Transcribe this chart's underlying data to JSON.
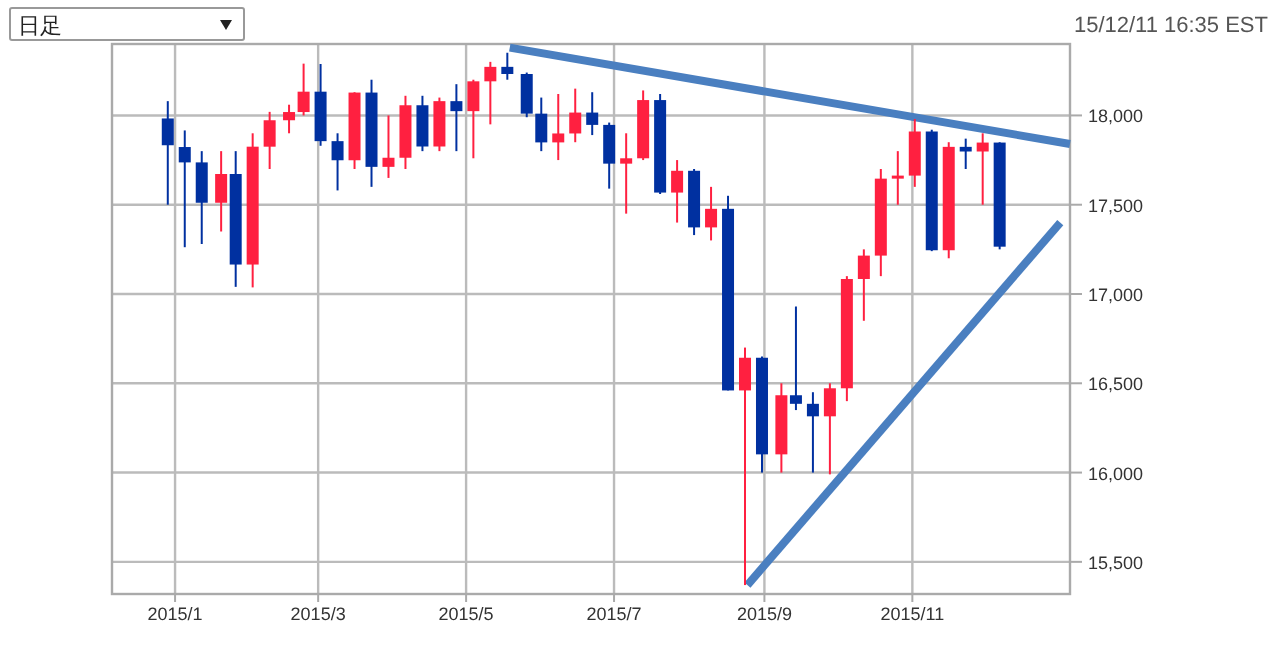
{
  "chart_data": {
    "type": "candlestick",
    "annotations": [
      "日足",
      "15/12/11 16:35 EST"
    ],
    "xlim": [
      "2014-12-06",
      "2016-01-05"
    ],
    "xticks": [
      {
        "value": "2015-01-01",
        "label": "2015/1"
      },
      {
        "value": "2015-03-01",
        "label": "2015/3"
      },
      {
        "value": "2015-05-01",
        "label": "2015/5"
      },
      {
        "value": "2015-07-01",
        "label": "2015/7"
      },
      {
        "value": "2015-09-01",
        "label": "2015/9"
      },
      {
        "value": "2015-11-01",
        "label": "2015/11"
      }
    ],
    "ylim": [
      15320,
      18400
    ],
    "yticks": [
      {
        "value": 15500,
        "label": "15,500"
      },
      {
        "value": 16000,
        "label": "16,000"
      },
      {
        "value": 16500,
        "label": "16,500"
      },
      {
        "value": 17000,
        "label": "17,000"
      },
      {
        "value": 17500,
        "label": "17,500"
      },
      {
        "value": 18000,
        "label": "18,000"
      }
    ],
    "grid": true,
    "x": [
      "2014-12-29",
      "2015-01-05",
      "2015-01-12",
      "2015-01-20",
      "2015-01-26",
      "2015-02-02",
      "2015-02-09",
      "2015-02-17",
      "2015-02-23",
      "2015-03-02",
      "2015-03-09",
      "2015-03-16",
      "2015-03-23",
      "2015-03-30",
      "2015-04-06",
      "2015-04-13",
      "2015-04-20",
      "2015-04-27",
      "2015-05-04",
      "2015-05-11",
      "2015-05-18",
      "2015-05-26",
      "2015-06-01",
      "2015-06-08",
      "2015-06-15",
      "2015-06-22",
      "2015-06-29",
      "2015-07-06",
      "2015-07-13",
      "2015-07-20",
      "2015-07-27",
      "2015-08-03",
      "2015-08-10",
      "2015-08-17",
      "2015-08-24",
      "2015-08-31",
      "2015-09-08",
      "2015-09-14",
      "2015-09-21",
      "2015-09-28",
      "2015-10-05",
      "2015-10-12",
      "2015-10-19",
      "2015-10-26",
      "2015-11-02",
      "2015-11-09",
      "2015-11-16",
      "2015-11-23",
      "2015-11-30",
      "2015-12-07"
    ],
    "ohlc": [
      [
        17983,
        18080,
        17500,
        17833
      ],
      [
        17823,
        17916,
        17262,
        17737
      ],
      [
        17737,
        17800,
        17280,
        17511
      ],
      [
        17511,
        17800,
        17350,
        17672
      ],
      [
        17672,
        17800,
        17040,
        17165
      ],
      [
        17165,
        17900,
        17037,
        17825
      ],
      [
        17825,
        18020,
        17700,
        17973
      ],
      [
        17973,
        18060,
        17900,
        18019
      ],
      [
        18019,
        18290,
        18000,
        18133
      ],
      [
        18133,
        18288,
        17830,
        17856
      ],
      [
        17856,
        17900,
        17580,
        17749
      ],
      [
        17749,
        18130,
        17700,
        18128
      ],
      [
        18128,
        18200,
        17600,
        17712
      ],
      [
        17712,
        18000,
        17650,
        17763
      ],
      [
        17763,
        18110,
        17700,
        18057
      ],
      [
        18057,
        18110,
        17800,
        17826
      ],
      [
        17826,
        18100,
        17800,
        18080
      ],
      [
        18080,
        18175,
        17800,
        18024
      ],
      [
        18024,
        18200,
        17760,
        18191
      ],
      [
        18191,
        18300,
        17950,
        18272
      ],
      [
        18272,
        18351,
        18200,
        18232
      ],
      [
        18232,
        18240,
        17990,
        18010
      ],
      [
        18010,
        18100,
        17800,
        17849
      ],
      [
        17849,
        18120,
        17750,
        17899
      ],
      [
        17899,
        18150,
        17850,
        18016
      ],
      [
        18016,
        18130,
        17890,
        17947
      ],
      [
        17947,
        17960,
        17590,
        17730
      ],
      [
        17730,
        17900,
        17450,
        17760
      ],
      [
        17760,
        18140,
        17750,
        18086
      ],
      [
        18086,
        18120,
        17560,
        17568
      ],
      [
        17568,
        17750,
        17400,
        17690
      ],
      [
        17690,
        17700,
        17330,
        17373
      ],
      [
        17373,
        17600,
        17300,
        17477
      ],
      [
        17477,
        17550,
        16460,
        16460
      ],
      [
        16460,
        16700,
        15370,
        16643
      ],
      [
        16643,
        16650,
        16000,
        16102
      ],
      [
        16102,
        16500,
        16000,
        16433
      ],
      [
        16433,
        16930,
        16350,
        16385
      ],
      [
        16385,
        16450,
        16000,
        16315
      ],
      [
        16315,
        16500,
        15990,
        16472
      ],
      [
        16472,
        17100,
        16400,
        17084
      ],
      [
        17084,
        17250,
        16850,
        17215
      ],
      [
        17215,
        17700,
        17100,
        17646
      ],
      [
        17646,
        17800,
        17500,
        17663
      ],
      [
        17663,
        17980,
        17600,
        17910
      ],
      [
        17910,
        17920,
        17240,
        17245
      ],
      [
        17245,
        17850,
        17200,
        17824
      ],
      [
        17824,
        17870,
        17700,
        17798
      ],
      [
        17798,
        17900,
        17500,
        17848
      ],
      [
        17848,
        17850,
        17250,
        17265
      ]
    ],
    "colors": [
      "#0030a0",
      "#0030a0",
      "#0030a0",
      "#ff2040",
      "#0030a0",
      "#ff2040",
      "#ff2040",
      "#ff2040",
      "#ff2040",
      "#0030a0",
      "#0030a0",
      "#ff2040",
      "#0030a0",
      "#ff2040",
      "#ff2040",
      "#0030a0",
      "#ff2040",
      "#0030a0",
      "#ff2040",
      "#ff2040",
      "#0030a0",
      "#0030a0",
      "#0030a0",
      "#ff2040",
      "#ff2040",
      "#0030a0",
      "#0030a0",
      "#ff2040",
      "#ff2040",
      "#0030a0",
      "#ff2040",
      "#0030a0",
      "#ff2040",
      "#0030a0",
      "#ff2040",
      "#0030a0",
      "#ff2040",
      "#0030a0",
      "#0030a0",
      "#ff2040",
      "#ff2040",
      "#ff2040",
      "#ff2040",
      "#ff2040",
      "#ff2040",
      "#0030a0",
      "#ff2040",
      "#0030a0",
      "#ff2040",
      "#0030a0"
    ],
    "series": [
      {
        "type": "line",
        "color": "#4a7fc0",
        "x": [
          "2015-05-19",
          "2016-01-05"
        ],
        "values": [
          18380,
          17840
        ]
      },
      {
        "type": "line",
        "color": "#4a7fc0",
        "x": [
          "2015-08-25",
          "2016-01-01"
        ],
        "values": [
          15370,
          17400
        ]
      }
    ],
    "line_style": "solid"
  }
}
